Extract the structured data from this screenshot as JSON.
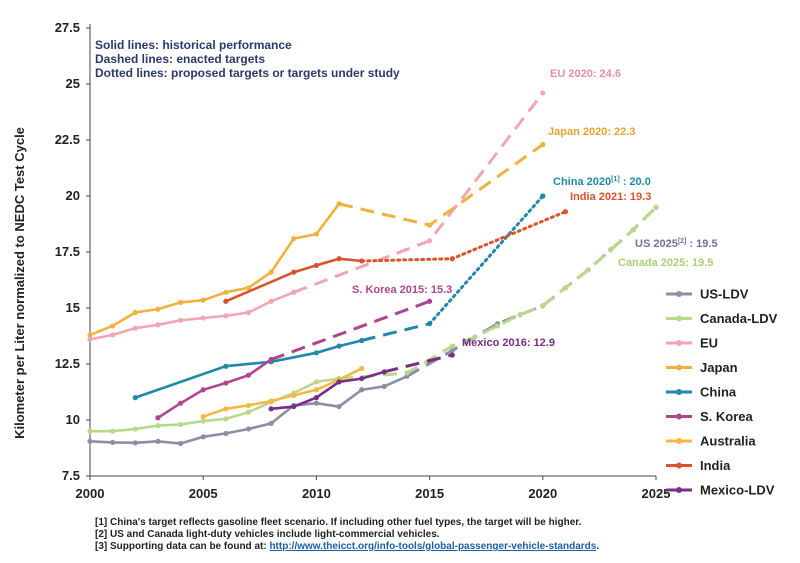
{
  "notes": [
    "Solid lines: historical performance",
    "Dashed lines: enacted targets",
    "Dotted lines: proposed targets or targets under study"
  ],
  "footnotes": {
    "f1": "[1] China's target reflects gasoline fleet scenario. If including other fuel types, the target will be higher.",
    "f2": "[2] US and Canada light-duty vehicles include light-commercial vehicles.",
    "f3_prefix": "[3] Supporting data can be found at: ",
    "f3_link": "http://www.theicct.org/info-tools/global-passenger-vehicle-standards",
    "f3_suffix": "."
  },
  "annotations": {
    "eu": "EU 2020: 24.6",
    "japan": "Japan 2020: 22.3",
    "china_pre": "China 2020",
    "china_sup": "[1]",
    "china_post": " : 20.0",
    "india": "India 2021: 19.3",
    "us_pre": "US 2025",
    "us_sup": "[2]",
    "us_post": " : 19.5",
    "canada": "Canada 2025: 19.5",
    "korea": "S. Korea 2015: 15.3",
    "mexico": "Mexico 2016: 12.9"
  },
  "chart_data": {
    "type": "line",
    "ylabel": "Kilometer per Liter normalized to NEDC Test Cycle",
    "xlabel": "",
    "xlim": [
      2000,
      2025
    ],
    "ylim": [
      7.5,
      27.5
    ],
    "xticks": [
      2000,
      2005,
      2010,
      2015,
      2020,
      2025
    ],
    "yticks": [
      7.5,
      10,
      12.5,
      15,
      17.5,
      20,
      22.5,
      25,
      27.5
    ],
    "legend_position": "right",
    "grid": false,
    "series": [
      {
        "name": "US-LDV",
        "color": "#8a8fa6",
        "historical": [
          [
            2000,
            9.05
          ],
          [
            2001,
            9.0
          ],
          [
            2002,
            8.98
          ],
          [
            2003,
            9.05
          ],
          [
            2004,
            8.95
          ],
          [
            2005,
            9.25
          ],
          [
            2006,
            9.4
          ],
          [
            2007,
            9.6
          ],
          [
            2008,
            9.85
          ],
          [
            2009,
            10.65
          ],
          [
            2010,
            10.75
          ],
          [
            2011,
            10.6
          ],
          [
            2012,
            11.35
          ],
          [
            2013,
            11.5
          ],
          [
            2014,
            11.95
          ]
        ],
        "enacted": [
          [
            2014,
            11.95
          ],
          [
            2016,
            13.1
          ],
          [
            2017,
            13.7
          ],
          [
            2018,
            14.3
          ],
          [
            2019,
            14.7
          ],
          [
            2020,
            15.1
          ],
          [
            2021,
            15.9
          ],
          [
            2022,
            16.7
          ],
          [
            2023,
            17.6
          ],
          [
            2024,
            18.5
          ],
          [
            2025,
            19.5
          ]
        ],
        "proposed": []
      },
      {
        "name": "Canada-LDV",
        "color": "#b8d88a",
        "historical": [
          [
            2000,
            9.5
          ],
          [
            2001,
            9.5
          ],
          [
            2002,
            9.6
          ],
          [
            2003,
            9.75
          ],
          [
            2004,
            9.8
          ],
          [
            2005,
            9.95
          ],
          [
            2006,
            10.05
          ],
          [
            2007,
            10.35
          ],
          [
            2008,
            10.8
          ],
          [
            2009,
            11.2
          ],
          [
            2010,
            11.7
          ],
          [
            2011,
            11.85
          ]
        ],
        "enacted": [
          [
            2011,
            11.85
          ],
          [
            2014,
            12.1
          ],
          [
            2016,
            13.3
          ],
          [
            2017,
            13.7
          ],
          [
            2018,
            14.2
          ],
          [
            2019,
            14.7
          ],
          [
            2020,
            15.1
          ],
          [
            2021,
            15.9
          ],
          [
            2022,
            16.7
          ],
          [
            2023,
            17.6
          ],
          [
            2024,
            18.5
          ],
          [
            2025,
            19.5
          ]
        ],
        "proposed": []
      },
      {
        "name": "EU",
        "color": "#f2a6b4",
        "historical": [
          [
            2000,
            13.6
          ],
          [
            2001,
            13.8
          ],
          [
            2002,
            14.1
          ],
          [
            2003,
            14.25
          ],
          [
            2004,
            14.45
          ],
          [
            2005,
            14.55
          ],
          [
            2006,
            14.65
          ],
          [
            2007,
            14.8
          ],
          [
            2008,
            15.3
          ],
          [
            2009,
            15.7
          ]
        ],
        "enacted": [
          [
            2009,
            15.7
          ],
          [
            2015,
            18.0
          ],
          [
            2020,
            24.6
          ]
        ],
        "proposed": []
      },
      {
        "name": "Japan",
        "color": "#f0b13e",
        "historical": [
          [
            2000,
            13.8
          ],
          [
            2001,
            14.2
          ],
          [
            2002,
            14.8
          ],
          [
            2003,
            14.95
          ],
          [
            2004,
            15.25
          ],
          [
            2005,
            15.35
          ],
          [
            2006,
            15.7
          ],
          [
            2007,
            15.9
          ],
          [
            2008,
            16.6
          ],
          [
            2009,
            18.1
          ],
          [
            2010,
            18.3
          ],
          [
            2011,
            19.65
          ]
        ],
        "enacted": [
          [
            2011,
            19.65
          ],
          [
            2015,
            18.7
          ],
          [
            2020,
            22.3
          ]
        ],
        "proposed": []
      },
      {
        "name": "China",
        "color": "#1f8aa8",
        "historical": [
          [
            2002,
            11.0
          ],
          [
            2006,
            12.4
          ],
          [
            2008,
            12.6
          ],
          [
            2010,
            13.0
          ],
          [
            2011,
            13.3
          ],
          [
            2012,
            13.55
          ]
        ],
        "enacted": [
          [
            2012,
            13.55
          ],
          [
            2015,
            14.3
          ]
        ],
        "proposed": [
          [
            2015,
            14.3
          ],
          [
            2020,
            20.0
          ]
        ]
      },
      {
        "name": "S. Korea",
        "color": "#b0458f",
        "historical": [
          [
            2003,
            10.1
          ],
          [
            2004,
            10.75
          ],
          [
            2005,
            11.35
          ],
          [
            2006,
            11.65
          ],
          [
            2007,
            12.0
          ],
          [
            2008,
            12.7
          ]
        ],
        "enacted": [
          [
            2008,
            12.7
          ],
          [
            2015,
            15.3
          ]
        ],
        "proposed": []
      },
      {
        "name": "Australia",
        "color": "#f5b842",
        "historical": [
          [
            2005,
            10.15
          ],
          [
            2006,
            10.5
          ],
          [
            2007,
            10.65
          ],
          [
            2008,
            10.85
          ],
          [
            2009,
            11.1
          ],
          [
            2010,
            11.35
          ],
          [
            2011,
            11.8
          ],
          [
            2012,
            12.3
          ]
        ],
        "enacted": [],
        "proposed": []
      },
      {
        "name": "India",
        "color": "#d9542a",
        "historical": [
          [
            2006,
            15.3
          ],
          [
            2009,
            16.6
          ],
          [
            2010,
            16.9
          ],
          [
            2011,
            17.2
          ],
          [
            2012,
            17.1
          ]
        ],
        "enacted": [],
        "proposed": [
          [
            2012,
            17.1
          ],
          [
            2016,
            17.2
          ],
          [
            2021,
            19.3
          ]
        ]
      },
      {
        "name": "Mexico-LDV",
        "color": "#7a2d86",
        "historical": [
          [
            2008,
            10.5
          ],
          [
            2009,
            10.6
          ],
          [
            2010,
            11.0
          ],
          [
            2011,
            11.7
          ],
          [
            2012,
            11.85
          ],
          [
            2013,
            12.15
          ]
        ],
        "enacted": [
          [
            2013,
            12.15
          ],
          [
            2016,
            12.9
          ]
        ],
        "proposed": []
      }
    ]
  }
}
